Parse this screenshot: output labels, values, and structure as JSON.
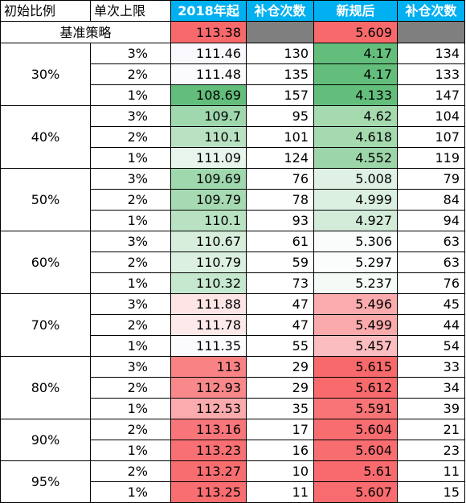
{
  "headers": [
    "初始比例",
    "单次上限",
    "2018年起",
    "补仓次数",
    "新规后",
    "补仓次数"
  ],
  "baseline": {
    "label": "基准策略",
    "v2018": "113.38",
    "vnew": "5.609",
    "color_2018": "#f8696b",
    "color_new": "#f8696b",
    "blank_color": "#7f7f7f"
  },
  "groups": [
    {
      "ratio": "30%",
      "rows": [
        {
          "cap": "3%",
          "v2018": "111.46",
          "cnt1": "130",
          "vnew": "4.17",
          "cnt2": "134",
          "c2018": "#f9f9fd",
          "cnew": "#63be7b"
        },
        {
          "cap": "2%",
          "v2018": "111.48",
          "cnt1": "135",
          "vnew": "4.17",
          "cnt2": "133",
          "c2018": "#fbfbfe",
          "cnew": "#63be7b"
        },
        {
          "cap": "1%",
          "v2018": "108.69",
          "cnt1": "157",
          "vnew": "4.133",
          "cnt2": "147",
          "c2018": "#63be7b",
          "cnew": "#63be7b"
        }
      ]
    },
    {
      "ratio": "40%",
      "rows": [
        {
          "cap": "3%",
          "v2018": "109.7",
          "cnt1": "95",
          "vnew": "4.62",
          "cnt2": "104",
          "c2018": "#a0d8ae",
          "cnew": "#a5daaf"
        },
        {
          "cap": "2%",
          "v2018": "110.1",
          "cnt1": "101",
          "vnew": "4.618",
          "cnt2": "107",
          "c2018": "#b8e2c2",
          "cnew": "#a5daaf"
        },
        {
          "cap": "1%",
          "v2018": "111.09",
          "cnt1": "124",
          "vnew": "4.552",
          "cnt2": "119",
          "c2018": "#e8f5ec",
          "cnew": "#9bd5a8"
        }
      ]
    },
    {
      "ratio": "50%",
      "rows": [
        {
          "cap": "3%",
          "v2018": "109.69",
          "cnt1": "76",
          "vnew": "5.008",
          "cnt2": "79",
          "c2018": "#a0d8ae",
          "cnew": "#dff1e4"
        },
        {
          "cap": "2%",
          "v2018": "109.79",
          "cnt1": "78",
          "vnew": "4.999",
          "cnt2": "84",
          "c2018": "#a6dab3",
          "cnew": "#dcf0e1"
        },
        {
          "cap": "1%",
          "v2018": "110.1",
          "cnt1": "93",
          "vnew": "4.927",
          "cnt2": "94",
          "c2018": "#b8e2c2",
          "cnew": "#d2ecd9"
        }
      ]
    },
    {
      "ratio": "60%",
      "rows": [
        {
          "cap": "3%",
          "v2018": "110.67",
          "cnt1": "61",
          "vnew": "5.306",
          "cnt2": "63",
          "c2018": "#d7eedd",
          "cnew": "#fafcfb"
        },
        {
          "cap": "2%",
          "v2018": "110.79",
          "cnt1": "59",
          "vnew": "5.297",
          "cnt2": "63",
          "c2018": "#dbf0e0",
          "cnew": "#fafdfb"
        },
        {
          "cap": "1%",
          "v2018": "110.32",
          "cnt1": "73",
          "vnew": "5.237",
          "cnt2": "76",
          "c2018": "#c6e8ce",
          "cnew": "#f4faf5"
        }
      ]
    },
    {
      "ratio": "70%",
      "rows": [
        {
          "cap": "3%",
          "v2018": "111.88",
          "cnt1": "47",
          "vnew": "5.496",
          "cnt2": "45",
          "c2018": "#fde5e6",
          "cnew": "#fbabad"
        },
        {
          "cap": "2%",
          "v2018": "111.78",
          "cnt1": "47",
          "vnew": "5.499",
          "cnt2": "44",
          "c2018": "#fde9ea",
          "cnew": "#fbaaac"
        },
        {
          "cap": "1%",
          "v2018": "111.35",
          "cnt1": "55",
          "vnew": "5.457",
          "cnt2": "54",
          "c2018": "#fbfbfe",
          "cnew": "#fbbdbf"
        }
      ]
    },
    {
      "ratio": "80%",
      "rows": [
        {
          "cap": "3%",
          "v2018": "113",
          "cnt1": "29",
          "vnew": "5.615",
          "cnt2": "33",
          "c2018": "#f98285",
          "cnew": "#f8696b"
        },
        {
          "cap": "2%",
          "v2018": "112.93",
          "cnt1": "29",
          "vnew": "5.612",
          "cnt2": "34",
          "c2018": "#f9888a",
          "cnew": "#f86a6c"
        },
        {
          "cap": "1%",
          "v2018": "112.53",
          "cnt1": "35",
          "vnew": "5.591",
          "cnt2": "39",
          "c2018": "#fbabad",
          "cnew": "#f87476"
        }
      ]
    },
    {
      "ratio": "90%",
      "rows": [
        {
          "cap": "2%",
          "v2018": "113.16",
          "cnt1": "17",
          "vnew": "5.604",
          "cnt2": "21",
          "c2018": "#f8767a",
          "cnew": "#f86d70"
        },
        {
          "cap": "1%",
          "v2018": "113.23",
          "cnt1": "16",
          "vnew": "5.604",
          "cnt2": "23",
          "c2018": "#f87073",
          "cnew": "#f86d70"
        }
      ]
    },
    {
      "ratio": "95%",
      "rows": [
        {
          "cap": "2%",
          "v2018": "113.27",
          "cnt1": "10",
          "vnew": "5.61",
          "cnt2": "11",
          "c2018": "#f86d70",
          "cnew": "#f86a6d"
        },
        {
          "cap": "1%",
          "v2018": "113.25",
          "cnt1": "11",
          "vnew": "5.607",
          "cnt2": "15",
          "c2018": "#f86e71",
          "cnew": "#f86b6e"
        }
      ]
    }
  ]
}
